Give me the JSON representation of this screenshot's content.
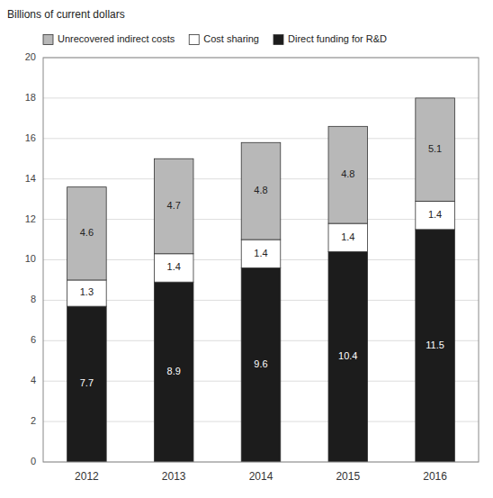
{
  "chart_data": {
    "type": "bar",
    "stacked": true,
    "ylabel": "Billions of current dollars",
    "categories": [
      "2012",
      "2013",
      "2014",
      "2015",
      "2016"
    ],
    "series": [
      {
        "name": "Direct funding for R&D",
        "color": "#1c1c1c",
        "values": [
          7.7,
          8.9,
          9.6,
          10.4,
          11.5
        ]
      },
      {
        "name": "Cost sharing",
        "color": "#ffffff",
        "values": [
          1.3,
          1.4,
          1.4,
          1.4,
          1.4
        ]
      },
      {
        "name": "Unrecovered indirect costs",
        "color": "#b8b8b8",
        "values": [
          4.6,
          4.7,
          4.8,
          4.8,
          5.1
        ]
      }
    ],
    "ylim": [
      0,
      20
    ],
    "yticks": [
      0,
      2,
      4,
      6,
      8,
      10,
      12,
      14,
      16,
      18,
      20
    ],
    "grid": true,
    "legend": "upper left",
    "data_labels": true
  }
}
